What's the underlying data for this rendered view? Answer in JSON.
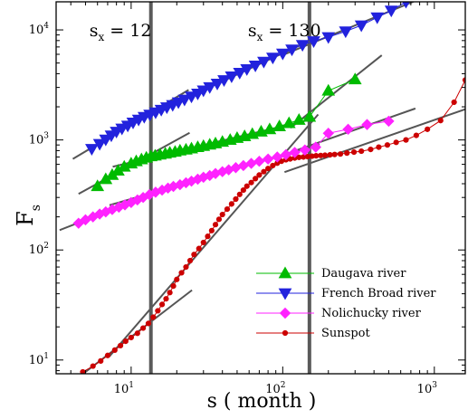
{
  "chart_data": {
    "type": "scatter",
    "title": "",
    "xlabel": "s ( month )",
    "ylabel": "Fs",
    "ylabel_main": "F",
    "ylabel_sub": "s",
    "xscale": "log",
    "yscale": "log",
    "xlim": [
      3.2,
      1600
    ],
    "ylim": [
      7.5,
      18000
    ],
    "grid": false,
    "legend_position": "bottom-right",
    "x_ticks": [
      {
        "value": 10,
        "base": "10",
        "exp": "1"
      },
      {
        "value": 100,
        "base": "10",
        "exp": "2"
      },
      {
        "value": 1000,
        "base": "10",
        "exp": "3"
      }
    ],
    "y_ticks": [
      {
        "value": 10,
        "base": "10",
        "exp": "1"
      },
      {
        "value": 100,
        "base": "10",
        "exp": "2"
      },
      {
        "value": 1000,
        "base": "10",
        "exp": "3"
      },
      {
        "value": 10000,
        "base": "10",
        "exp": "4"
      }
    ],
    "crossovers": [
      {
        "x": 13.5,
        "label": "s",
        "sub": "x",
        "eq": " = 12"
      },
      {
        "x": 150,
        "label": "s",
        "sub": "x",
        "eq": " = 130"
      }
    ],
    "series": [
      {
        "name": "Daugava river",
        "color": "#00bb00",
        "marker": "triangle-up",
        "x": [
          6,
          6.8,
          7.5,
          8.2,
          9,
          10,
          10.8,
          11.7,
          12.6,
          13.5,
          14.4,
          15.5,
          16.8,
          18,
          19.5,
          21,
          23,
          25,
          27.5,
          30,
          33,
          36,
          40,
          45,
          50,
          56,
          63,
          72,
          82,
          95,
          110,
          128,
          150,
          200,
          300
        ],
        "y": [
          380,
          440,
          480,
          525,
          570,
          610,
          640,
          665,
          690,
          710,
          720,
          735,
          750,
          765,
          780,
          800,
          815,
          835,
          860,
          880,
          905,
          930,
          960,
          1000,
          1040,
          1080,
          1130,
          1190,
          1250,
          1330,
          1420,
          1520,
          1620,
          2800,
          3550
        ]
      },
      {
        "name": "French Broad river",
        "color": "#2222dd",
        "marker": "triangle-down",
        "x": [
          5.5,
          6.2,
          6.8,
          7.4,
          8,
          8.7,
          9.5,
          10.3,
          11.2,
          12.2,
          13.3,
          14.5,
          15.8,
          17.2,
          18.8,
          20.5,
          22.5,
          25,
          27.5,
          30,
          33,
          37,
          41,
          46,
          52,
          58,
          66,
          75,
          86,
          100,
          115,
          135,
          160,
          200,
          260,
          330,
          420,
          520,
          650
        ],
        "y": [
          830,
          920,
          1010,
          1100,
          1190,
          1270,
          1350,
          1440,
          1530,
          1620,
          1700,
          1780,
          1880,
          1980,
          2080,
          2200,
          2330,
          2480,
          2640,
          2820,
          3020,
          3250,
          3500,
          3780,
          4080,
          4400,
          4750,
          5150,
          5600,
          6100,
          6650,
          7300,
          7900,
          8600,
          9700,
          11000,
          13000,
          15000,
          18000
        ]
      },
      {
        "name": "Nolichucky river",
        "color": "#ff22ff",
        "marker": "diamond",
        "x": [
          4.5,
          5,
          5.6,
          6.2,
          6.8,
          7.5,
          8.3,
          9.1,
          10,
          11,
          12,
          13.2,
          14.5,
          16,
          17.5,
          19,
          21,
          23,
          25,
          27.5,
          30,
          33,
          36,
          40,
          44,
          49,
          55,
          62,
          70,
          80,
          92,
          105,
          120,
          140,
          165,
          200,
          270,
          360,
          500
        ],
        "y": [
          175,
          188,
          200,
          212,
          222,
          233,
          245,
          257,
          270,
          285,
          300,
          318,
          335,
          350,
          365,
          378,
          392,
          408,
          422,
          440,
          458,
          475,
          495,
          515,
          535,
          560,
          585,
          612,
          640,
          670,
          700,
          735,
          770,
          810,
          860,
          1150,
          1250,
          1380,
          1480
        ]
      },
      {
        "name": "Sunspot",
        "color": "#cc0000",
        "marker": "circle",
        "x": [
          4.8,
          5.6,
          6.3,
          7,
          7.8,
          8.5,
          9.2,
          10,
          11,
          12,
          13,
          14,
          15,
          16,
          17,
          18,
          19,
          20,
          21.5,
          23,
          24.5,
          26,
          28,
          30,
          32,
          34,
          36,
          38,
          40,
          43,
          46,
          49,
          52,
          55,
          58,
          62,
          66,
          70,
          75,
          80,
          86,
          92,
          98,
          105,
          112,
          120,
          128,
          137,
          146,
          156,
          166,
          178,
          190,
          205,
          220,
          240,
          265,
          295,
          330,
          380,
          430,
          490,
          560,
          650,
          760,
          900,
          1100,
          1350,
          1600
        ],
        "y": [
          7.8,
          8.8,
          9.8,
          11,
          12.3,
          13.5,
          14.8,
          16,
          17.5,
          19.5,
          21.5,
          24.5,
          28,
          32,
          36,
          41,
          47,
          54,
          62,
          70,
          80,
          91,
          103,
          117,
          133,
          150,
          170,
          190,
          210,
          235,
          262,
          290,
          320,
          350,
          380,
          410,
          445,
          480,
          515,
          550,
          585,
          615,
          640,
          660,
          672,
          685,
          695,
          700,
          705,
          712,
          718,
          722,
          726,
          732,
          738,
          745,
          760,
          775,
          790,
          820,
          860,
          900,
          950,
          1000,
          1100,
          1250,
          1500,
          2200,
          3500
        ]
      }
    ]
  }
}
